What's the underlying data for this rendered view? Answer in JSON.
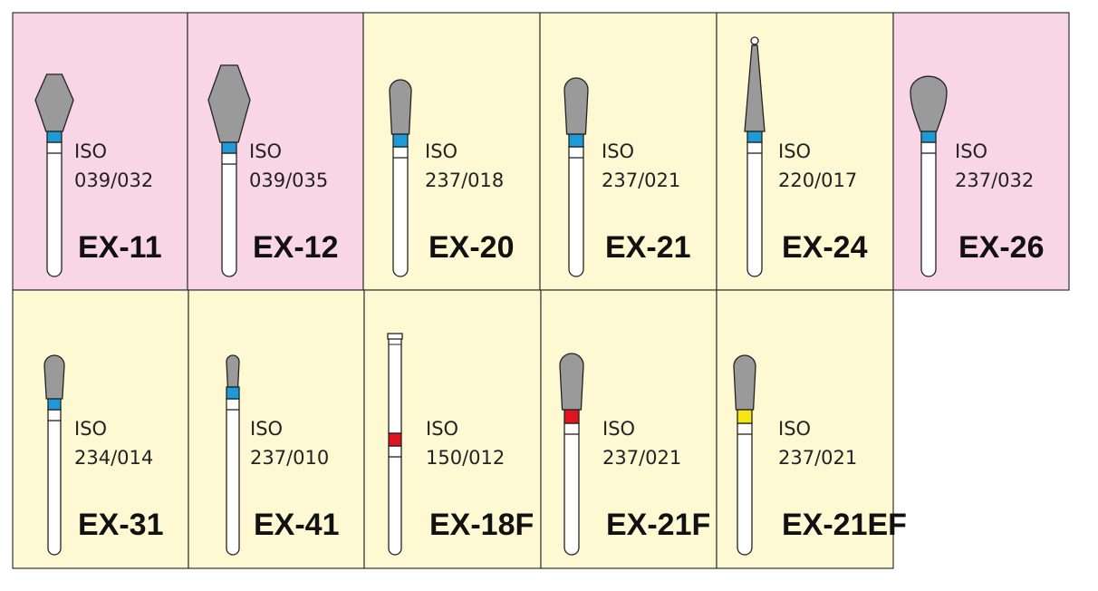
{
  "cells": [
    {
      "name": "EX-11",
      "iso": "ISO",
      "size": "039/032",
      "background": "#f9d6e5",
      "band_color": "#1e9ad6"
    },
    {
      "name": "EX-12",
      "iso": "ISO",
      "size": "039/035",
      "background": "#f9d6e5",
      "band_color": "#1e9ad6"
    },
    {
      "name": "EX-20",
      "iso": "ISO",
      "size": "237/018",
      "background": "#fef9d3",
      "band_color": "#1e9ad6"
    },
    {
      "name": "EX-21",
      "iso": "ISO",
      "size": "237/021",
      "background": "#fef9d3",
      "band_color": "#1e9ad6"
    },
    {
      "name": "EX-24",
      "iso": "ISO",
      "size": "220/017",
      "background": "#fef9d3",
      "band_color": "#1e9ad6"
    },
    {
      "name": "EX-26",
      "iso": "ISO",
      "size": "237/032",
      "background": "#f9d6e5",
      "band_color": "#1e9ad6"
    },
    {
      "name": "EX-31",
      "iso": "ISO",
      "size": "234/014",
      "background": "#fef9d3",
      "band_color": "#1e9ad6"
    },
    {
      "name": "EX-41",
      "iso": "ISO",
      "size": "237/010",
      "background": "#fef9d3",
      "band_color": "#1e9ad6"
    },
    {
      "name": "EX-18F",
      "iso": "ISO",
      "size": "150/012",
      "background": "#fef9d3",
      "band_color": "#e0141e"
    },
    {
      "name": "EX-21F",
      "iso": "ISO",
      "size": "237/021",
      "background": "#fef9d3",
      "band_color": "#e0141e"
    },
    {
      "name": "EX-21EF",
      "iso": "ISO",
      "size": "237/021",
      "background": "#fef9d3",
      "band_color": "#f5e614"
    }
  ]
}
